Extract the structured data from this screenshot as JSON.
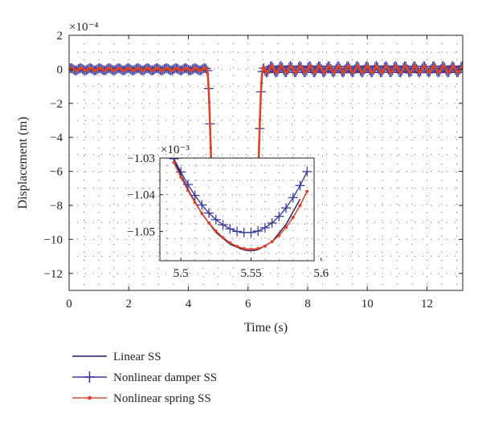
{
  "chart_data": [
    {
      "type": "line",
      "xlabel": "Time (s)",
      "ylabel": "Displacement (m)",
      "y_multiplier": "×10⁻⁴",
      "xlim": [
        0,
        13.2
      ],
      "ylim": [
        -13,
        2
      ],
      "x_ticks": [
        0,
        2,
        4,
        6,
        8,
        10,
        12
      ],
      "y_ticks": [
        2,
        0,
        -2,
        -4,
        -6,
        -8,
        -10,
        -12
      ],
      "x_tick_labels": [
        "0",
        "2",
        "4",
        "6",
        "8",
        "10",
        "12"
      ],
      "y_tick_labels": [
        "2",
        "0",
        "−2",
        "−4",
        "−6",
        "−8",
        "−10",
        "−12"
      ],
      "grid": "dotted",
      "legend_position": "below",
      "series": [
        {
          "name": "Linear SS",
          "color": "#1a1a5e",
          "marker": "none"
        },
        {
          "name": "Nonlinear damper SS",
          "color": "#3a3a9a",
          "marker": "plus"
        },
        {
          "name": "Nonlinear spring SS",
          "color": "#d9462b",
          "marker": "dot"
        }
      ],
      "signal": {
        "baseline": 0,
        "oscillation_amplitude": 0.2,
        "oscillation_period": 0.32,
        "drop_start": 4.62,
        "drop_end": 4.9,
        "rise_start": 6.22,
        "rise_end": 6.5,
        "trough": -10.4
      }
    },
    {
      "type": "line",
      "role": "inset",
      "y_multiplier": "×10⁻³",
      "xlim": [
        5.485,
        5.595
      ],
      "ylim": [
        -1.058,
        -1.03
      ],
      "x_ticks": [
        5.5,
        5.55,
        5.6
      ],
      "y_ticks": [
        -1.03,
        -1.04,
        -1.05
      ],
      "x_tick_labels": [
        "5.5",
        "5.55",
        "5.6"
      ],
      "y_tick_labels": [
        "−1.03",
        "−1.04",
        "−1.05"
      ],
      "series": [
        {
          "name": "Linear SS",
          "x": [
            5.495,
            5.505,
            5.515,
            5.525,
            5.535,
            5.545,
            5.55,
            5.555,
            5.565,
            5.575,
            5.585
          ],
          "y": [
            -1.0306,
            -1.0385,
            -1.0452,
            -1.0503,
            -1.0535,
            -1.0551,
            -1.0553,
            -1.055,
            -1.0528,
            -1.0481,
            -1.0412
          ]
        },
        {
          "name": "Nonlinear damper SS",
          "x": [
            5.495,
            5.5,
            5.505,
            5.51,
            5.515,
            5.52,
            5.525,
            5.53,
            5.535,
            5.54,
            5.545,
            5.55,
            5.555,
            5.56,
            5.565,
            5.57,
            5.575,
            5.58,
            5.585,
            5.59
          ],
          "y": [
            -1.0302,
            -1.0338,
            -1.0372,
            -1.0402,
            -1.0428,
            -1.045,
            -1.0468,
            -1.0482,
            -1.0493,
            -1.05,
            -1.0503,
            -1.0503,
            -1.0499,
            -1.049,
            -1.0477,
            -1.0459,
            -1.0436,
            -1.0408,
            -1.0375,
            -1.0337
          ]
        },
        {
          "name": "Nonlinear spring SS",
          "x": [
            5.495,
            5.5,
            5.505,
            5.51,
            5.515,
            5.52,
            5.525,
            5.53,
            5.535,
            5.54,
            5.545,
            5.55,
            5.555,
            5.56,
            5.565,
            5.57,
            5.575,
            5.58,
            5.585,
            5.59
          ],
          "y": [
            -1.0312,
            -1.0352,
            -1.0388,
            -1.0421,
            -1.0451,
            -1.0477,
            -1.0499,
            -1.0517,
            -1.0531,
            -1.0541,
            -1.0547,
            -1.0549,
            -1.0547,
            -1.054,
            -1.0528,
            -1.0511,
            -1.0489,
            -1.0462,
            -1.0429,
            -1.0391
          ]
        }
      ]
    }
  ]
}
